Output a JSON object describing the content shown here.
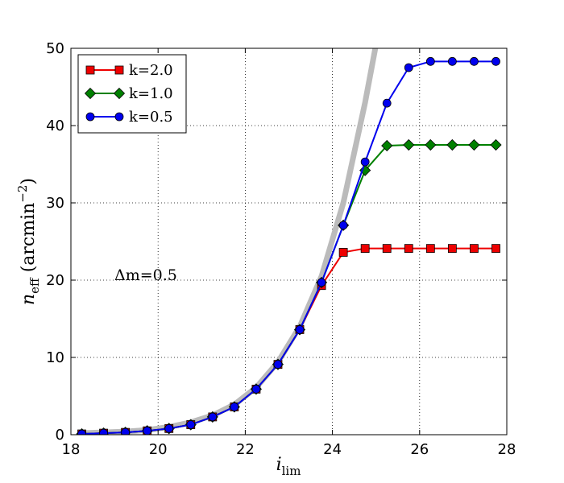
{
  "chart_data": {
    "type": "line",
    "x_axis": {
      "label_base": "i",
      "label_sub": "lim",
      "range": [
        18,
        28
      ],
      "ticks": [
        18,
        20,
        22,
        24,
        26,
        28
      ]
    },
    "y_axis": {
      "label_base": "n",
      "label_sub": "eff",
      "label_unit": " (arcmin",
      "label_sup": "−2",
      "label_close": ")",
      "range": [
        0,
        50
      ],
      "ticks": [
        0,
        10,
        20,
        30,
        40,
        50
      ]
    },
    "grid": true,
    "legend_position": "top-left",
    "annotation": "Δm=0.5",
    "reference_curve": {
      "color": "#bbbbbb",
      "x": [
        18.25,
        18.75,
        19.25,
        19.75,
        20.25,
        20.75,
        21.25,
        21.75,
        22.25,
        22.75,
        23.25,
        23.75,
        24.25,
        24.75,
        25.0
      ],
      "y": [
        0.2,
        0.3,
        0.4,
        0.6,
        1.0,
        1.6,
        2.5,
        3.9,
        6.1,
        9.4,
        14.0,
        20.5,
        30.0,
        43.0,
        50.5
      ]
    },
    "series": [
      {
        "name": "k=2.0",
        "color": "#ee0000",
        "marker": "square",
        "x": [
          18.25,
          18.75,
          19.25,
          19.75,
          20.25,
          20.75,
          21.25,
          21.75,
          22.25,
          22.75,
          23.25,
          23.75,
          24.25,
          24.75,
          25.25,
          25.75,
          26.25,
          26.75,
          27.25,
          27.75
        ],
        "y": [
          0.1,
          0.2,
          0.3,
          0.5,
          0.8,
          1.3,
          2.3,
          3.6,
          5.9,
          9.1,
          13.6,
          19.3,
          23.6,
          24.1,
          24.1,
          24.1,
          24.1,
          24.1,
          24.1,
          24.1
        ]
      },
      {
        "name": "k=1.0",
        "color": "#008000",
        "marker": "diamond",
        "x": [
          18.25,
          18.75,
          19.25,
          19.75,
          20.25,
          20.75,
          21.25,
          21.75,
          22.25,
          22.75,
          23.25,
          23.75,
          24.25,
          24.75,
          25.25,
          25.75,
          26.25,
          26.75,
          27.25,
          27.75
        ],
        "y": [
          0.1,
          0.2,
          0.3,
          0.5,
          0.8,
          1.3,
          2.3,
          3.6,
          5.9,
          9.1,
          13.6,
          19.7,
          27.1,
          34.2,
          37.4,
          37.5,
          37.5,
          37.5,
          37.5,
          37.5
        ]
      },
      {
        "name": "k=0.5",
        "color": "#0000ee",
        "marker": "circle",
        "x": [
          18.25,
          18.75,
          19.25,
          19.75,
          20.25,
          20.75,
          21.25,
          21.75,
          22.25,
          22.75,
          23.25,
          23.75,
          24.25,
          24.75,
          25.25,
          25.75,
          26.25,
          26.75,
          27.25,
          27.75
        ],
        "y": [
          0.1,
          0.2,
          0.3,
          0.5,
          0.8,
          1.3,
          2.3,
          3.6,
          5.9,
          9.1,
          13.6,
          19.7,
          27.1,
          35.3,
          42.9,
          47.5,
          48.3,
          48.3,
          48.3,
          48.3
        ]
      }
    ]
  }
}
